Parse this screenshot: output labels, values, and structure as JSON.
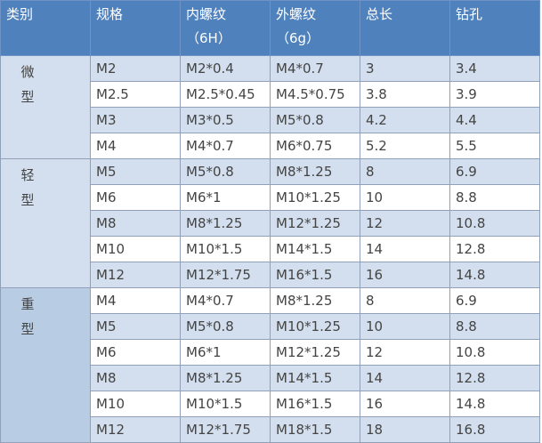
{
  "headers": [
    {
      "label": "类别",
      "sub": ""
    },
    {
      "label": "规格",
      "sub": ""
    },
    {
      "label": "内螺纹",
      "sub": "（6H）"
    },
    {
      "label": "外螺纹",
      "sub": "（6g）"
    },
    {
      "label": "总长",
      "sub": ""
    },
    {
      "label": "钻孔",
      "sub": ""
    }
  ],
  "colors": {
    "header": "#4f81bd",
    "stripe": "#d3dfee",
    "group_heavy": "#b8cce4"
  },
  "groups": [
    {
      "name": [
        "微",
        "型"
      ],
      "rows": [
        [
          "M2",
          "M2*0.4",
          "M4*0.7",
          "3",
          "3.4"
        ],
        [
          "M2.5",
          "M2.5*0.45",
          "M4.5*0.75",
          "3.8",
          "3.9"
        ],
        [
          "M3",
          "M3*0.5",
          "M5*0.8",
          "4.2",
          "4.4"
        ],
        [
          "M4",
          "M4*0.7",
          "M6*0.75",
          "5.2",
          "5.5"
        ]
      ]
    },
    {
      "name": [
        "轻",
        "型"
      ],
      "rows": [
        [
          "M5",
          "M5*0.8",
          "M8*1.25",
          "8",
          "6.9"
        ],
        [
          "M6",
          "M6*1",
          "M10*1.25",
          "10",
          "8.8"
        ],
        [
          "M8",
          "M8*1.25",
          "M12*1.25",
          "12",
          "10.8"
        ],
        [
          "M10",
          "M10*1.5",
          "M14*1.5",
          "14",
          "12.8"
        ],
        [
          "M12",
          "M12*1.75",
          "M16*1.5",
          "16",
          "14.8"
        ]
      ]
    },
    {
      "name": [
        "重",
        "型"
      ],
      "rows": [
        [
          "M4",
          "M4*0.7",
          "M8*1.25",
          "8",
          "6.9"
        ],
        [
          "M5",
          "M5*0.8",
          "M10*1.25",
          "10",
          "8.8"
        ],
        [
          "M6",
          "M6*1",
          "M12*1.25",
          "12",
          "10.8"
        ],
        [
          "M8",
          "M8*1.25",
          "M14*1.5",
          "14",
          "12.8"
        ],
        [
          "M10",
          "M10*1.5",
          "M16*1.5",
          "16",
          "14.8"
        ],
        [
          "M12",
          "M12*1.75",
          "M18*1.5",
          "18",
          "16.8"
        ]
      ]
    }
  ]
}
